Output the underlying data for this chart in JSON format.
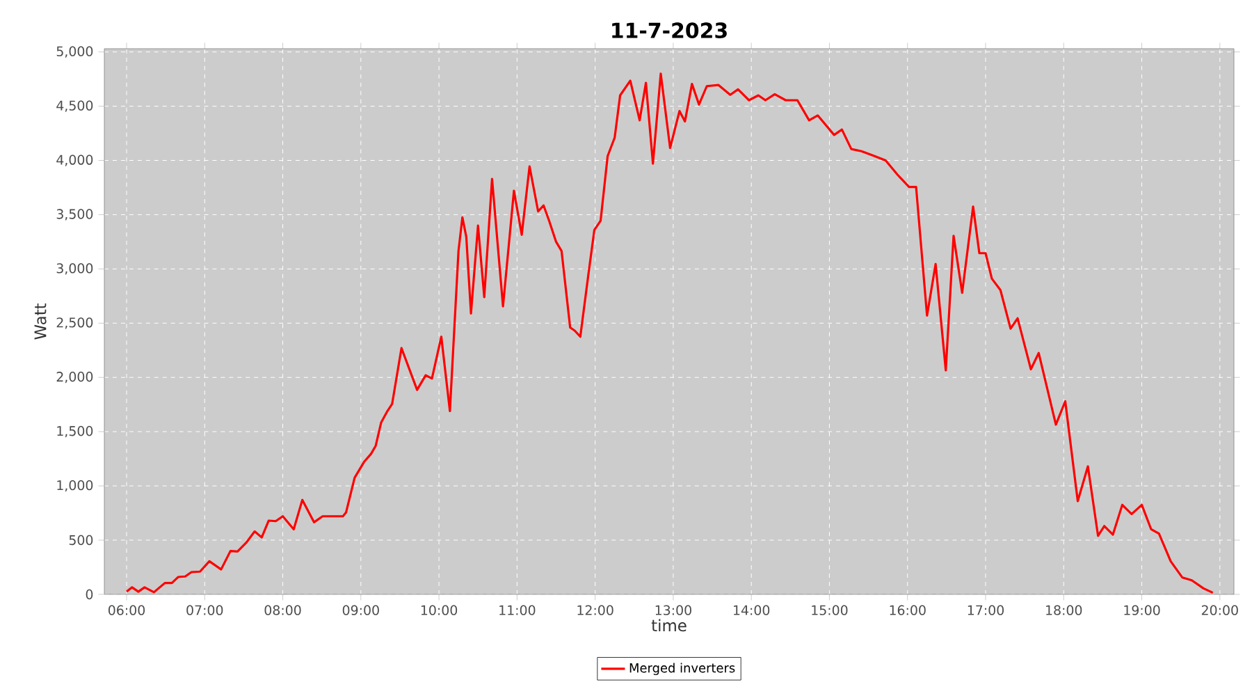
{
  "chart_data": {
    "type": "line",
    "title": "11-7-2023",
    "xlabel": "time",
    "ylabel": "Watt",
    "x": [
      6.0,
      6.07,
      6.15,
      6.23,
      6.35,
      6.49,
      6.58,
      6.66,
      6.75,
      6.83,
      6.94,
      7.06,
      7.21,
      7.33,
      7.42,
      7.53,
      7.64,
      7.73,
      7.82,
      7.91,
      8.0,
      8.14,
      8.25,
      8.4,
      8.51,
      8.77,
      8.81,
      8.92,
      9.04,
      9.13,
      9.19,
      9.26,
      9.34,
      9.4,
      9.52,
      9.72,
      9.83,
      9.91,
      10.03,
      10.14,
      10.25,
      10.3,
      10.35,
      10.41,
      10.5,
      10.58,
      10.68,
      10.82,
      10.96,
      11.06,
      11.16,
      11.27,
      11.34,
      11.41,
      11.5,
      11.57,
      11.68,
      11.74,
      11.81,
      11.91,
      11.99,
      12.07,
      12.16,
      12.25,
      12.32,
      12.45,
      12.57,
      12.65,
      12.74,
      12.84,
      12.96,
      13.08,
      13.15,
      13.24,
      13.33,
      13.43,
      13.58,
      13.73,
      13.83,
      13.97,
      14.09,
      14.18,
      14.3,
      14.44,
      14.59,
      14.74,
      14.85,
      15.06,
      15.16,
      15.28,
      15.41,
      15.56,
      15.72,
      15.87,
      16.02,
      16.11,
      16.25,
      16.36,
      16.49,
      16.59,
      16.7,
      16.84,
      16.92,
      17.0,
      17.08,
      17.19,
      17.32,
      17.41,
      17.58,
      17.68,
      17.9,
      18.02,
      18.18,
      18.31,
      18.44,
      18.52,
      18.63,
      18.75,
      18.87,
      19.0,
      19.12,
      19.22,
      19.37,
      19.52,
      19.64,
      19.79,
      19.91
    ],
    "series": [
      {
        "name": "Merged inverters",
        "color": "#ff0000",
        "values": [
          25,
          65,
          25,
          65,
          20,
          105,
          105,
          160,
          165,
          205,
          210,
          305,
          230,
          400,
          395,
          475,
          580,
          525,
          680,
          675,
          720,
          600,
          870,
          665,
          720,
          720,
          755,
          1075,
          1220,
          1295,
          1370,
          1585,
          1690,
          1755,
          2270,
          1885,
          2020,
          1990,
          2375,
          1690,
          3165,
          3475,
          3295,
          2590,
          3400,
          2740,
          3830,
          2655,
          3720,
          3315,
          3945,
          3530,
          3585,
          3445,
          3250,
          3165,
          2460,
          2430,
          2375,
          2930,
          3360,
          3445,
          4040,
          4210,
          4600,
          4735,
          4370,
          4715,
          3970,
          4800,
          4115,
          4455,
          4360,
          4705,
          4515,
          4685,
          4695,
          4605,
          4655,
          4555,
          4600,
          4555,
          4610,
          4555,
          4555,
          4370,
          4415,
          4235,
          4285,
          4105,
          4085,
          4045,
          4000,
          3870,
          3755,
          3755,
          2570,
          3045,
          2065,
          3305,
          2780,
          3575,
          3145,
          3145,
          2910,
          2805,
          2450,
          2545,
          2075,
          2225,
          1565,
          1780,
          860,
          1180,
          540,
          630,
          550,
          825,
          740,
          825,
          600,
          560,
          305,
          155,
          130,
          55,
          15
        ]
      }
    ],
    "xlim": [
      5.715,
      20.18
    ],
    "ylim": [
      0,
      5030
    ],
    "xticks": [
      {
        "value": 6,
        "label": "06:00"
      },
      {
        "value": 7,
        "label": "07:00"
      },
      {
        "value": 8,
        "label": "08:00"
      },
      {
        "value": 9,
        "label": "09:00"
      },
      {
        "value": 10,
        "label": "10:00"
      },
      {
        "value": 11,
        "label": "11:00"
      },
      {
        "value": 12,
        "label": "12:00"
      },
      {
        "value": 13,
        "label": "13:00"
      },
      {
        "value": 14,
        "label": "14:00"
      },
      {
        "value": 15,
        "label": "15:00"
      },
      {
        "value": 16,
        "label": "16:00"
      },
      {
        "value": 17,
        "label": "17:00"
      },
      {
        "value": 18,
        "label": "18:00"
      },
      {
        "value": 19,
        "label": "19:00"
      },
      {
        "value": 20,
        "label": "20:00"
      }
    ],
    "yticks": [
      0,
      {
        "value": 500,
        "label": "500"
      },
      {
        "value": 1000,
        "label": "1,000"
      },
      {
        "value": 1500,
        "label": "1,500"
      },
      {
        "value": 2000,
        "label": "2,000"
      },
      {
        "value": 2500,
        "label": "2,500"
      },
      {
        "value": 3000,
        "label": "3,000"
      },
      {
        "value": 3500,
        "label": "3,500"
      },
      {
        "value": 4000,
        "label": "4,000"
      },
      {
        "value": 4500,
        "label": "4,500"
      },
      {
        "value": 5000,
        "label": "5,000"
      }
    ],
    "grid": true,
    "legend": "bottom",
    "line_style": "solid"
  }
}
